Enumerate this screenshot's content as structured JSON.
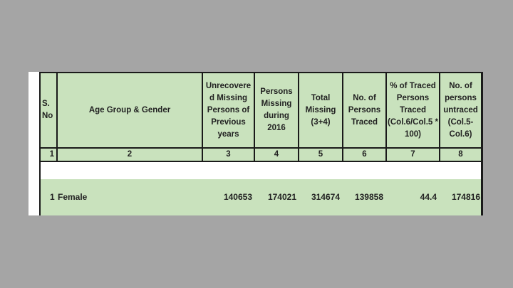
{
  "table": {
    "headers": [
      "S. No",
      "Age Group & Gender",
      "Unrecovere d Missing Persons of Previous years",
      "Persons Missing during 2016",
      "Total Missing (3+4)",
      "No. of Persons Traced",
      "% of Traced Persons Traced (Col.6/Col.5 * 100)",
      "No. of persons untraced (Col.5- Col.6)"
    ],
    "column_numbers": [
      "1",
      "2",
      "3",
      "4",
      "5",
      "6",
      "7",
      "8"
    ],
    "rows": [
      {
        "sno": "1",
        "group": "Female",
        "unrecovered": "140653",
        "missing_2016": "174021",
        "total": "314674",
        "traced": "139858",
        "pct_traced": "44.4",
        "untraced": "174816"
      }
    ]
  },
  "colors": {
    "header_bg": "#c9e2bd",
    "background": "#a5a5a5"
  }
}
